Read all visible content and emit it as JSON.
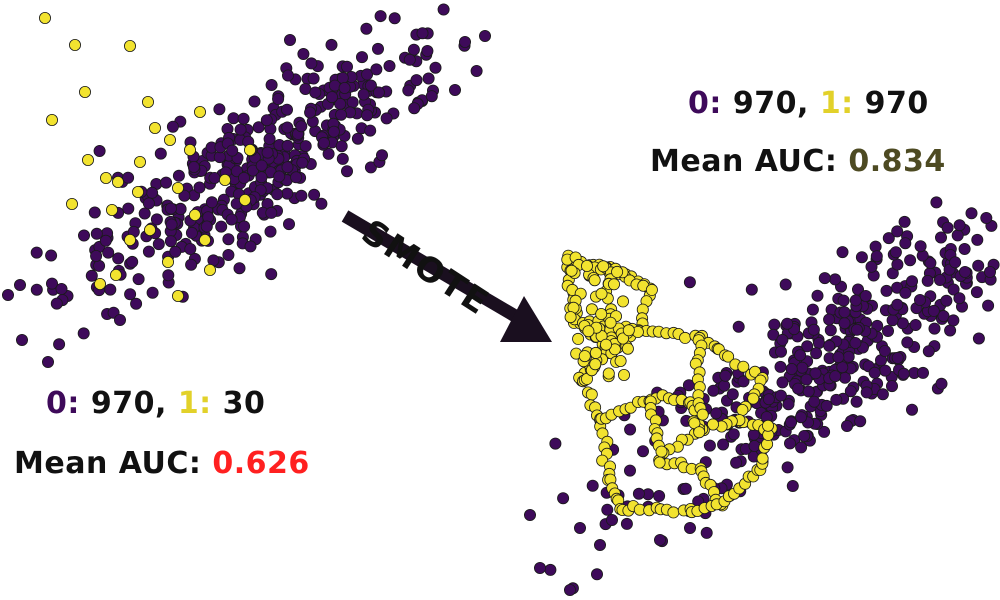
{
  "before": {
    "class0_key": "0:",
    "class0_count": "970,",
    "class1_key": "1:",
    "class1_count": "30",
    "auc_label": "Mean AUC:",
    "auc_value": "0.626"
  },
  "after": {
    "class0_key": "0:",
    "class0_count": "970,",
    "class1_key": "1:",
    "class1_count": "970",
    "auc_label": "Mean AUC:",
    "auc_value": "0.834"
  },
  "arrow": {
    "label": "SMOTE"
  },
  "colors": {
    "class0": "#3e0a5a",
    "class1": "#f2e32f",
    "auc_bad": "#ff2020",
    "auc_good": "#4d4a22",
    "arrow": "#1a0f1f"
  },
  "chart_data": [
    {
      "type": "scatter",
      "series": [
        {
          "name": "0",
          "count": 970
        },
        {
          "name": "1",
          "count": 30
        }
      ]
    },
    {
      "type": "scatter",
      "series": [
        {
          "name": "0",
          "count": 970
        },
        {
          "name": "1",
          "count": 970
        }
      ]
    }
  ]
}
